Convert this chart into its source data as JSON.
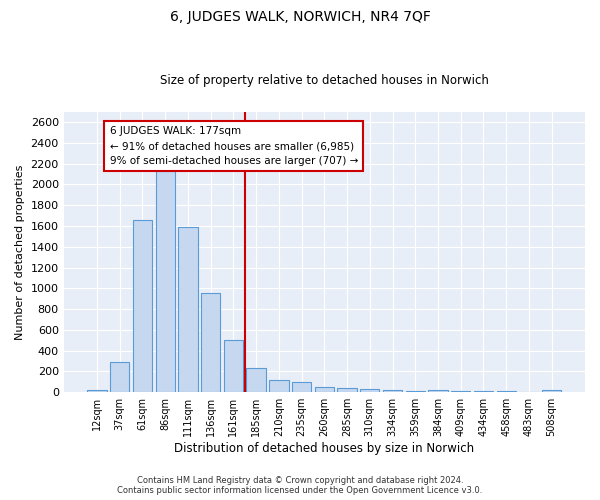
{
  "title": "6, JUDGES WALK, NORWICH, NR4 7QF",
  "subtitle": "Size of property relative to detached houses in Norwich",
  "xlabel": "Distribution of detached houses by size in Norwich",
  "ylabel": "Number of detached properties",
  "bar_color": "#c5d8f0",
  "bar_edge_color": "#5b9bd5",
  "background_color": "#e8eef7",
  "categories": [
    "12sqm",
    "37sqm",
    "61sqm",
    "86sqm",
    "111sqm",
    "136sqm",
    "161sqm",
    "185sqm",
    "210sqm",
    "235sqm",
    "260sqm",
    "285sqm",
    "310sqm",
    "334sqm",
    "359sqm",
    "384sqm",
    "409sqm",
    "434sqm",
    "458sqm",
    "483sqm",
    "508sqm"
  ],
  "values": [
    25,
    295,
    1660,
    2130,
    1595,
    955,
    505,
    235,
    120,
    100,
    50,
    45,
    35,
    20,
    15,
    20,
    15,
    15,
    10,
    5,
    25
  ],
  "vline_position": 6.5,
  "vline_color": "#cc0000",
  "annotation_text": "6 JUDGES WALK: 177sqm\n← 91% of detached houses are smaller (6,985)\n9% of semi-detached houses are larger (707) →",
  "annotation_box_color": "#ffffff",
  "annotation_box_edgecolor": "#cc0000",
  "ylim": [
    0,
    2700
  ],
  "yticks": [
    0,
    200,
    400,
    600,
    800,
    1000,
    1200,
    1400,
    1600,
    1800,
    2000,
    2200,
    2400,
    2600
  ],
  "footnote": "Contains HM Land Registry data © Crown copyright and database right 2024.\nContains public sector information licensed under the Open Government Licence v3.0.",
  "figsize": [
    6.0,
    5.0
  ],
  "dpi": 100
}
